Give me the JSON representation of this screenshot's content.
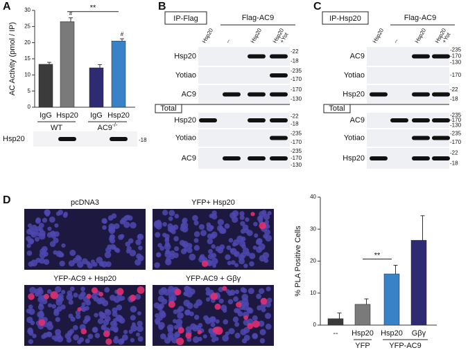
{
  "panel_labels": [
    "A",
    "B",
    "C",
    "D"
  ],
  "chart_data": [
    {
      "type": "bar",
      "y_label": "AC Activity (pmol / IP)",
      "groups": [
        {
          "label": "WT",
          "categories": [
            "IgG",
            "Hsp20"
          ]
        },
        {
          "label": "AC9",
          "label_sup": "-/-",
          "categories": [
            "IgG",
            "Hsp20"
          ]
        }
      ],
      "values": [
        13.3,
        26.5,
        12.2,
        20.5
      ],
      "errors": [
        0.6,
        1.2,
        1.0,
        0.7
      ],
      "colors": [
        "#3b3b3b",
        "#7a7a7a",
        "#2e2b72",
        "#3a82c8"
      ],
      "value_annotations": [
        null,
        "#",
        null,
        "#"
      ],
      "bracket_label": "**",
      "ylim": [
        0,
        30
      ],
      "yticks": [
        0,
        5,
        10,
        15,
        20,
        25,
        30
      ]
    },
    {
      "type": "bar",
      "y_label": "% PLA Positive Cells",
      "groups": [
        {
          "categories": [
            "--"
          ]
        },
        {
          "label": "YFP",
          "categories": [
            "Hsp20"
          ]
        },
        {
          "label": "YFP-AC9",
          "categories": [
            "Hsp20",
            "Gβγ"
          ]
        }
      ],
      "values": [
        2,
        6.5,
        16,
        26.5
      ],
      "errors": [
        1.8,
        1.7,
        2.7,
        7.7
      ],
      "colors": [
        "#3b3b3b",
        "#7a7a7a",
        "#3a82c8",
        "#2e2b72"
      ],
      "bracket_label": "**",
      "ylim": [
        0,
        40
      ],
      "yticks": [
        0,
        10,
        20,
        30,
        40
      ]
    }
  ],
  "blots": {
    "A": {
      "label": "Hsp20",
      "marker": "-18"
    },
    "B": {
      "ip": "IP-Flag",
      "group": "Flag-AC9",
      "lanes": [
        "Hsp20",
        "--",
        "Hsp20",
        "Hsp20"
      ],
      "lane_extra": "+Yot",
      "total": "Total",
      "rows": [
        {
          "label": "Hsp20",
          "markers": [
            "-22",
            "-18"
          ]
        },
        {
          "label": "Yotiao",
          "markers": [
            "-235",
            "-170"
          ]
        },
        {
          "label": "AC9",
          "markers": [
            "-170",
            "-130"
          ]
        }
      ],
      "total_rows": [
        {
          "label": "Hsp20",
          "markers": [
            "-22",
            "-18"
          ]
        },
        {
          "label": "Yotiao",
          "markers": [
            "-235",
            "-170"
          ]
        },
        {
          "label": "AC9",
          "markers": [
            "-235",
            "-170",
            "-130"
          ]
        }
      ]
    },
    "C": {
      "ip": "IP-Hsp20",
      "group": "Flag-AC9",
      "lanes": [
        "Hsp20",
        "--",
        "Hsp20",
        "Hsp20"
      ],
      "lane_extra": "+Yot",
      "total": "Total",
      "rows": [
        {
          "label": "AC9",
          "markers": [
            "-235",
            "-170",
            "-130"
          ]
        },
        {
          "label": "Yotiao",
          "markers": [
            "-170"
          ]
        },
        {
          "label": "Hsp20",
          "markers": [
            "-22",
            "-18"
          ]
        }
      ],
      "total_rows": [
        {
          "label": "AC9",
          "markers": [
            "-235",
            "-170",
            "-130"
          ]
        },
        {
          "label": "Yotiao",
          "markers": [
            "-235",
            "-170"
          ]
        },
        {
          "label": "Hsp20",
          "markers": [
            "-22",
            "-18"
          ]
        }
      ]
    }
  },
  "images": [
    "pcDNA3",
    "YFP+ Hsp20",
    "YFP-AC9 + Hsp20",
    "YFP-AC9 + Gβγ"
  ]
}
